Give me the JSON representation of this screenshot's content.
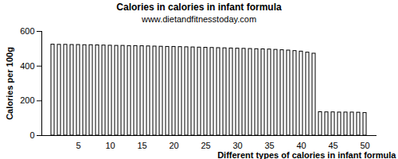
{
  "chart_data": {
    "type": "bar",
    "title": "Calories in calories in infant formula",
    "subtitle": "www.dietandfitnesstoday.com",
    "x_label": "Different types of calories in infant formula",
    "y_label": "Calories per 100g",
    "categories": [
      null,
      null,
      null,
      null,
      "5",
      null,
      null,
      null,
      null,
      "10",
      null,
      null,
      null,
      null,
      "15",
      null,
      null,
      null,
      null,
      "20",
      null,
      null,
      null,
      null,
      "25",
      null,
      null,
      null,
      null,
      "30",
      null,
      null,
      null,
      null,
      "35",
      null,
      null,
      null,
      null,
      "40",
      null,
      null,
      null,
      null,
      "45",
      null,
      null,
      null,
      null,
      "50"
    ],
    "values": [
      524,
      523,
      523,
      522,
      522,
      521,
      521,
      520,
      519,
      518,
      517,
      517,
      516,
      516,
      515,
      514,
      513,
      512,
      511,
      511,
      510,
      509,
      508,
      507,
      506,
      505,
      504,
      503,
      502,
      501,
      500,
      499,
      498,
      497,
      496,
      494,
      492,
      490,
      487,
      484,
      478,
      472,
      135,
      134,
      134,
      133,
      133,
      133,
      132,
      130
    ],
    "color": "#ffffff",
    "ylim": [
      0,
      600
    ],
    "yticks": [
      0,
      200,
      400,
      600
    ],
    "grid": false
  }
}
